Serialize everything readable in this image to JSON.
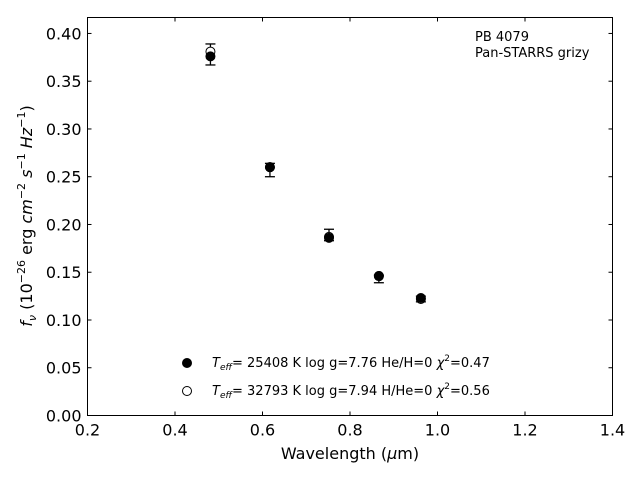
{
  "chart_data": {
    "type": "scatter",
    "xlabel": "Wavelength (μm)",
    "ylabel": "f_ν (10^-26 erg cm^-2 s^-1 Hz^-1)",
    "xlim": [
      0.2,
      1.4
    ],
    "ylim": [
      0.0,
      0.4167
    ],
    "x_ticks": [
      "0.2",
      "0.4",
      "0.6",
      "0.8",
      "1.0",
      "1.2",
      "1.4"
    ],
    "y_ticks": [
      "0.00",
      "0.05",
      "0.10",
      "0.15",
      "0.20",
      "0.25",
      "0.30",
      "0.35",
      "0.40"
    ],
    "grid": false,
    "annotation": [
      "PB 4079",
      "Pan-STARRS grizy"
    ],
    "observed": {
      "x": [
        0.481,
        0.617,
        0.752,
        0.866,
        0.962
      ],
      "y": [
        0.378,
        0.257,
        0.189,
        0.143,
        0.122
      ],
      "err": [
        0.011,
        0.007,
        0.006,
        0.004,
        0.003
      ]
    },
    "series": [
      {
        "name": "T_eff= 25408 K  log g=7.76  He/H=0  χ²=0.47",
        "marker": "filled",
        "x": [
          0.481,
          0.617,
          0.752,
          0.866,
          0.962
        ],
        "y": [
          0.376,
          0.26,
          0.186,
          0.146,
          0.123
        ]
      },
      {
        "name": "T_eff= 32793 K  log g=7.94  H/He=0  χ²=0.56",
        "marker": "open",
        "x": [
          0.481,
          0.617,
          0.752,
          0.866,
          0.962
        ],
        "y": [
          0.381,
          0.26,
          0.187,
          0.146,
          0.122
        ]
      }
    ],
    "legend": {
      "placement": "lower-center",
      "entries": [
        {
          "teff": "= 25408 K  log g=7.76  He/H=0  ",
          "chi": "=0.47"
        },
        {
          "teff": "= 32793 K  log g=7.94  H/He=0  ",
          "chi": "=0.56"
        }
      ]
    }
  }
}
